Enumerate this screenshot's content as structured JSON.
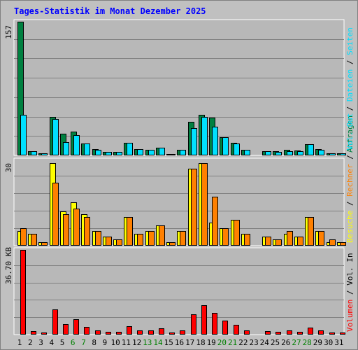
{
  "chart_data": [
    {
      "type": "bar",
      "title": "Tages-Statistik im Monat Dezember 2025",
      "ymax_label": "157",
      "legend": [
        "Anfragen",
        "Dateien",
        "Seiten"
      ],
      "legend_separator": " / ",
      "x": [
        "1",
        "2",
        "3",
        "4",
        "5",
        "6",
        "7",
        "8",
        "9",
        "10",
        "11",
        "12",
        "13",
        "14",
        "15",
        "16",
        "17",
        "18",
        "19",
        "20",
        "21",
        "22",
        "23",
        "24",
        "25",
        "26",
        "27",
        "28",
        "29",
        "30",
        "31"
      ],
      "weekend_days": [
        "6",
        "7",
        "13",
        "14",
        "20",
        "21",
        "27",
        "28"
      ],
      "ylim": [
        0,
        157
      ],
      "series": [
        {
          "name": "Anfragen",
          "color": "#008040",
          "values": [
            157,
            4,
            2,
            45,
            25,
            27,
            13,
            7,
            3,
            3,
            14,
            7,
            6,
            8,
            1,
            6,
            39,
            47,
            44,
            21,
            14,
            6,
            0,
            4,
            4,
            6,
            5,
            12,
            7,
            2,
            2
          ]
        },
        {
          "name": "Dateien",
          "color": "#00e0ff",
          "values": [
            47,
            4,
            2,
            42,
            15,
            23,
            13,
            6,
            3,
            3,
            14,
            7,
            6,
            8,
            1,
            6,
            31,
            45,
            33,
            21,
            13,
            6,
            0,
            4,
            3,
            4,
            4,
            12,
            6,
            2,
            2
          ]
        },
        {
          "name": "Seiten",
          "color": "#00e0ff",
          "values": [
            0,
            0,
            0,
            0,
            0,
            0,
            0,
            0,
            0,
            0,
            0,
            0,
            0,
            0,
            0,
            0,
            0,
            0,
            0,
            0,
            0,
            0,
            0,
            0,
            0,
            0,
            0,
            0,
            0,
            0,
            0
          ]
        }
      ]
    },
    {
      "type": "bar",
      "ymax_label": "30",
      "legend": [
        "Besuche",
        "Rechner",
        "Vol. Out"
      ],
      "legend_separator": " / ",
      "x": [
        "1",
        "2",
        "3",
        "4",
        "5",
        "6",
        "7",
        "8",
        "9",
        "10",
        "11",
        "12",
        "13",
        "14",
        "15",
        "16",
        "17",
        "18",
        "19",
        "20",
        "21",
        "22",
        "23",
        "24",
        "25",
        "26",
        "27",
        "28",
        "29",
        "30",
        "31"
      ],
      "ylim": [
        0,
        30
      ],
      "series": [
        {
          "name": "Besuche",
          "color": "#ffff00",
          "values": [
            5,
            4,
            1,
            29,
            12,
            15,
            11,
            5,
            3,
            2,
            10,
            4,
            5,
            7,
            1,
            5,
            27,
            29,
            8,
            6,
            9,
            4,
            0,
            3,
            2,
            4,
            3,
            10,
            5,
            1,
            1
          ]
        },
        {
          "name": "Rechner",
          "color": "#ff8000",
          "values": [
            6,
            4,
            1,
            22,
            11,
            13,
            10,
            5,
            3,
            2,
            10,
            4,
            5,
            7,
            1,
            5,
            27,
            29,
            17,
            6,
            9,
            4,
            0,
            3,
            2,
            5,
            3,
            10,
            5,
            2,
            1
          ]
        },
        {
          "name": "Vol. Out",
          "color": "#00e0ff",
          "values": [
            0,
            0,
            0,
            0,
            0,
            0,
            0,
            0,
            0,
            0,
            0,
            0,
            0,
            0,
            0,
            0,
            0,
            0,
            0,
            0,
            0,
            0,
            0,
            0,
            0,
            0,
            0,
            0,
            0,
            0,
            0
          ]
        }
      ]
    },
    {
      "type": "bar",
      "ymax_label": "36.70 KB",
      "legend": [
        "Volumen",
        "Vol. In"
      ],
      "legend_separator": " / ",
      "x": [
        "1",
        "2",
        "3",
        "4",
        "5",
        "6",
        "7",
        "8",
        "9",
        "10",
        "11",
        "12",
        "13",
        "14",
        "15",
        "16",
        "17",
        "18",
        "19",
        "20",
        "21",
        "22",
        "23",
        "24",
        "25",
        "26",
        "27",
        "28",
        "29",
        "30",
        "31"
      ],
      "ylim": [
        0,
        36.7
      ],
      "series": [
        {
          "name": "Volumen",
          "color": "#ff0000",
          "values": [
            36.7,
            1.3,
            0.5,
            10.6,
            4.2,
            6.4,
            3.2,
            1.5,
            1.0,
            1.0,
            3.5,
            1.5,
            1.5,
            2.3,
            0.6,
            1.6,
            8.5,
            12.4,
            9.3,
            5.8,
            3.9,
            1.5,
            0,
            1.2,
            1.0,
            1.5,
            1.0,
            2.8,
            1.5,
            0.5,
            0.5
          ]
        }
      ]
    }
  ]
}
